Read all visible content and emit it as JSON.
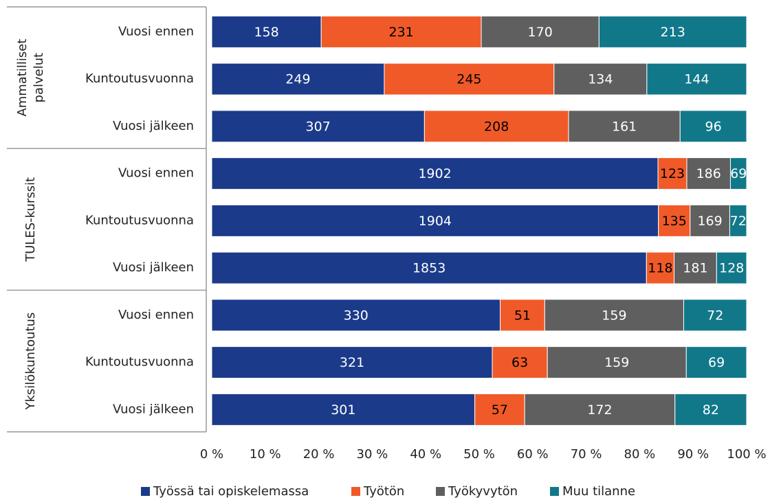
{
  "chart_data": {
    "type": "stacked-bar-percent",
    "orientation": "horizontal",
    "groups": [
      {
        "label": [
          "Ammatilliset",
          "palvelut"
        ],
        "categories": [
          "Vuosi ennen",
          "Kuntoutusvuonna",
          "Vuosi jälkeen"
        ]
      },
      {
        "label": [
          "TULES-kurssit"
        ],
        "categories": [
          "Vuosi ennen",
          "Kuntoutusvuonna",
          "Vuosi jälkeen"
        ]
      },
      {
        "label": [
          "Yksilökuntoutus"
        ],
        "categories": [
          "Vuosi ennen",
          "Kuntoutusvuonna",
          "Vuosi jälkeen"
        ]
      }
    ],
    "series": [
      {
        "name": "Työssä tai opiskelemassa",
        "color": "#1b3a8a",
        "label_color": "#ffffff",
        "values": [
          158,
          249,
          307,
          1902,
          1904,
          1853,
          330,
          321,
          301
        ]
      },
      {
        "name": "Työtön",
        "color": "#f05a28",
        "label_color": "#000000",
        "values": [
          231,
          245,
          208,
          123,
          135,
          118,
          51,
          63,
          57
        ]
      },
      {
        "name": "Työkyvytön",
        "color": "#5f5f5f",
        "label_color": "#ffffff",
        "values": [
          170,
          134,
          161,
          186,
          169,
          181,
          159,
          159,
          172
        ]
      },
      {
        "name": "Muu tilanne",
        "color": "#11788a",
        "label_color": "#ffffff",
        "values": [
          213,
          144,
          96,
          69,
          72,
          128,
          72,
          69,
          82
        ]
      }
    ],
    "xlim": [
      0,
      100
    ],
    "xticks": [
      {
        "value": 0,
        "label": "0 %"
      },
      {
        "value": 10,
        "label": "10 %"
      },
      {
        "value": 20,
        "label": "20 %"
      },
      {
        "value": 30,
        "label": "30 %"
      },
      {
        "value": 40,
        "label": "40 %"
      },
      {
        "value": 50,
        "label": "50 %"
      },
      {
        "value": 60,
        "label": "60 %"
      },
      {
        "value": 70,
        "label": "70 %"
      },
      {
        "value": 80,
        "label": "80 %"
      },
      {
        "value": 90,
        "label": "90 %"
      },
      {
        "value": 100,
        "label": "100 %"
      }
    ],
    "legend": "bottom"
  }
}
